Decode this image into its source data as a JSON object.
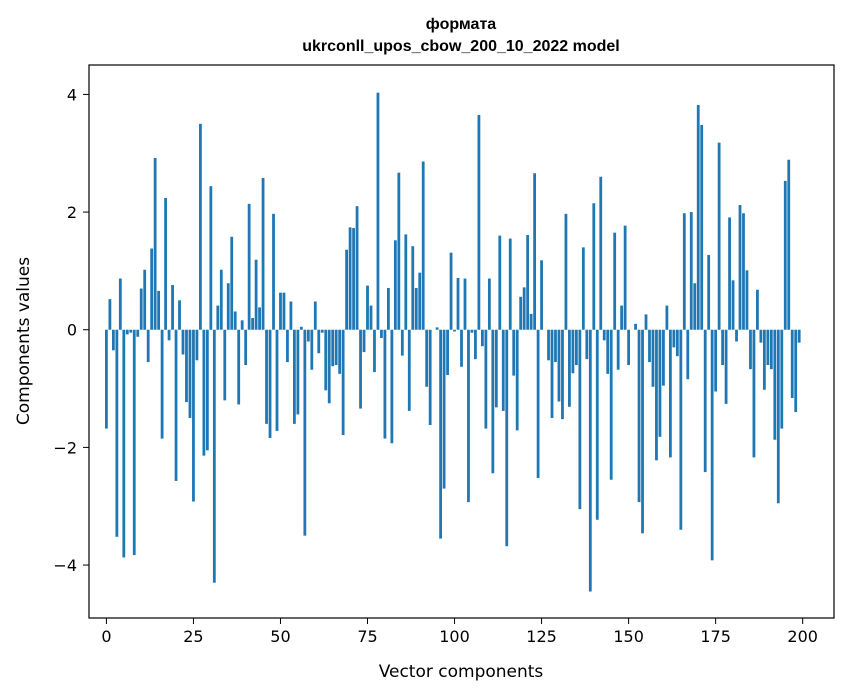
{
  "chart_data": {
    "type": "bar",
    "title_line1": "формата",
    "title_line2": "ukrconll_upos_cbow_200_10_2022 model",
    "xlabel": "Vector components",
    "ylabel": "Components values",
    "xlim": [
      -5,
      209
    ],
    "ylim": [
      -4.9,
      4.5
    ],
    "xticks": [
      0,
      25,
      50,
      75,
      100,
      125,
      150,
      175,
      200
    ],
    "yticks": [
      -4,
      -2,
      0,
      2,
      4
    ],
    "xtick_labels": [
      "0",
      "25",
      "50",
      "75",
      "100",
      "125",
      "150",
      "175",
      "200"
    ],
    "ytick_labels": [
      "−4",
      "−2",
      "0",
      "2",
      "4"
    ],
    "grid": false,
    "bar_color": "#1f77b4",
    "values": [
      -1.68,
      0.52,
      -0.35,
      -3.52,
      0.87,
      -3.87,
      -0.08,
      -0.05,
      -3.83,
      -0.12,
      0.7,
      1.02,
      -0.55,
      1.38,
      2.92,
      0.66,
      -1.85,
      2.24,
      -0.18,
      0.76,
      -2.57,
      0.5,
      -0.42,
      -1.23,
      -1.5,
      -2.92,
      -0.52,
      3.5,
      -2.14,
      -2.05,
      2.44,
      -4.3,
      0.41,
      1.02,
      -1.2,
      0.79,
      1.58,
      0.31,
      -1.27,
      0.16,
      -0.6,
      2.14,
      0.2,
      1.19,
      0.38,
      2.58,
      -1.6,
      -1.84,
      1.97,
      -1.72,
      0.63,
      0.63,
      -0.55,
      0.48,
      -1.6,
      -1.44,
      0.05,
      -3.5,
      -0.2,
      -0.68,
      0.48,
      -0.4,
      -0.05,
      -1.03,
      -1.25,
      -0.62,
      -0.6,
      -0.75,
      -1.79,
      1.36,
      1.74,
      1.73,
      2.1,
      -1.34,
      -0.38,
      0.75,
      0.41,
      -0.72,
      4.03,
      -0.14,
      -1.85,
      0.71,
      -1.93,
      1.52,
      2.67,
      -0.44,
      1.62,
      -1.38,
      1.42,
      0.71,
      0.97,
      2.86,
      -0.97,
      -1.62,
      0.0,
      0.04,
      -3.55,
      -2.7,
      -0.77,
      1.31,
      -0.03,
      0.88,
      -0.63,
      0.87,
      -2.93,
      -0.05,
      -0.5,
      3.65,
      -0.28,
      -1.68,
      0.87,
      -2.44,
      -1.32,
      1.6,
      -1.38,
      -3.68,
      1.55,
      -0.78,
      -1.71,
      0.56,
      0.72,
      1.61,
      0.27,
      2.66,
      -2.52,
      1.18,
      0.0,
      -0.52,
      -1.5,
      -0.55,
      -1.22,
      -1.52,
      1.97,
      -1.31,
      -0.74,
      -0.6,
      -3.05,
      1.4,
      -0.5,
      -4.45,
      2.15,
      -3.23,
      2.6,
      -0.18,
      -0.75,
      -2.55,
      1.65,
      -0.68,
      0.41,
      1.77,
      -0.6,
      0.0,
      0.1,
      -2.93,
      -3.46,
      0.26,
      -0.55,
      -0.97,
      -2.22,
      -1.82,
      -0.95,
      0.41,
      -2.17,
      -0.3,
      -0.45,
      -3.4,
      1.98,
      -0.84,
      2.0,
      0.79,
      3.82,
      3.48,
      -2.42,
      1.27,
      -3.92,
      -1.05,
      3.18,
      -0.6,
      -1.26,
      1.91,
      0.84,
      -0.2,
      2.12,
      1.98,
      1.01,
      -0.67,
      -2.17,
      0.68,
      -0.22,
      -1.02,
      -0.6,
      -0.67,
      -1.87,
      -2.95,
      -1.68,
      2.53,
      2.89,
      -1.16,
      -1.4,
      -0.22
    ]
  }
}
